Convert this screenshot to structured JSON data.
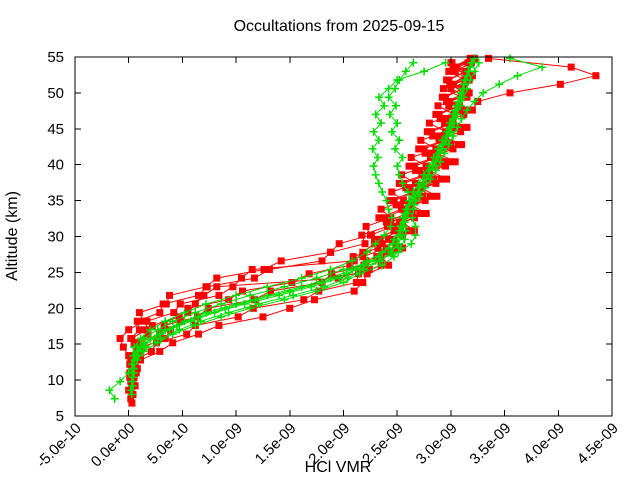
{
  "figure": {
    "title": "Occultations from 2025-09-15"
  },
  "axes": {
    "x": {
      "label": "HCl VMR",
      "tick_labels": [
        "-5.0e-10",
        "0.0e+00",
        "5.0e-10",
        "1.0e-09",
        "1.5e-09",
        "2.0e-09",
        "2.5e-09",
        "3.0e-09",
        "3.5e-09",
        "4.0e-09",
        "4.5e-09"
      ],
      "tick_values_nano": [
        -0.5,
        0,
        0.5,
        1,
        1.5,
        2,
        2.5,
        3,
        3.5,
        4,
        4.5
      ]
    },
    "y": {
      "label": "Altitude (km)",
      "tick_values": [
        5,
        10,
        15,
        20,
        25,
        30,
        35,
        40,
        45,
        50,
        55
      ]
    }
  },
  "colors": {
    "set1": "#ff0000",
    "set2": "#00dc00",
    "frame": "#000000",
    "background": "#ffffff"
  },
  "chart_data": {
    "type": "line",
    "title": "Occultations from 2025-09-15",
    "xlabel": "HCl VMR",
    "ylabel": "Altitude (km)",
    "xlim": [
      -5e-10,
      4.5e-09
    ],
    "ylim": [
      5,
      55
    ],
    "grid": false,
    "legend": "none",
    "marker_sets": {
      "set1": "filled-square",
      "set2": "plus"
    },
    "vmr_unit_multiplier": 1e-09,
    "altitude_step_km": 1.2,
    "series": [
      {
        "name": "red-occultation-1",
        "color_key": "set1",
        "marker": "square",
        "alt_start_km": 6.8,
        "vmr_nano": [
          0.03,
          0.04,
          0.04,
          0.05,
          0.03,
          0.11,
          0.29,
          0.41,
          0.65,
          0.84,
          1.25,
          1.5,
          1.73,
          2.1,
          2.18,
          2.22,
          2.42,
          2.35,
          2.55,
          2.46,
          2.66,
          2.55,
          2.77,
          2.63,
          2.87,
          2.72,
          2.96,
          2.8,
          3.04,
          2.87,
          3.1,
          2.92,
          3.15,
          2.97,
          3.2,
          3.25,
          3.55,
          4.02,
          4.35,
          4.12,
          3.35
        ]
      },
      {
        "name": "red-occultation-2",
        "color_key": "set1",
        "marker": "square",
        "alt_start_km": 8.0,
        "vmr_nano": [
          0.03,
          0.06,
          0.02,
          0.08,
          0.07,
          0.21,
          0.26,
          0.54,
          0.62,
          1.02,
          1.16,
          1.63,
          1.77,
          2.12,
          2.14,
          2.35,
          2.31,
          2.49,
          2.42,
          2.61,
          2.52,
          2.71,
          2.61,
          2.81,
          2.7,
          2.91,
          2.78,
          2.99,
          2.85,
          3.07,
          2.91,
          3.11,
          2.95,
          3.14,
          2.99,
          3.17,
          3.02,
          3.2,
          3.05,
          3.22
        ]
      },
      {
        "name": "red-occultation-3",
        "color_key": "set1",
        "marker": "square",
        "alt_start_km": 7.4,
        "vmr_nano": [
          0.02,
          0.0,
          0.04,
          0.07,
          0.03,
          0.09,
          0.12,
          0.34,
          0.39,
          0.48,
          0.55,
          0.62,
          0.7,
          0.82,
          1.95,
          2.24,
          2.21,
          2.43,
          2.36,
          2.55,
          2.46,
          2.66,
          2.56,
          2.76,
          2.64,
          2.86,
          2.73,
          2.95,
          2.81,
          3.02,
          2.89,
          3.09,
          2.94,
          3.12,
          2.98,
          3.15,
          3.0,
          3.17,
          3.04,
          3.19
        ]
      },
      {
        "name": "red-occultation-4",
        "color_key": "set1",
        "marker": "square",
        "alt_start_km": 9.2,
        "vmr_nano": [
          0.03,
          0.01,
          0.07,
          0.05,
          0.1,
          0.09,
          0.29,
          0.33,
          0.64,
          0.74,
          1.17,
          1.32,
          1.8,
          1.89,
          2.19,
          2.18,
          2.4,
          2.34,
          2.53,
          2.44,
          2.64,
          2.53,
          2.74,
          2.62,
          2.84,
          2.71,
          2.93,
          2.79,
          3.0,
          2.87,
          3.07,
          2.93,
          3.11,
          2.97,
          3.14,
          3.0,
          3.16,
          3.03,
          3.2
        ]
      },
      {
        "name": "red-occultation-5",
        "color_key": "set1",
        "marker": "square",
        "alt_start_km": 10.4,
        "vmr_nano": [
          0.03,
          0.06,
          0.02,
          0.08,
          0.05,
          0.18,
          0.22,
          0.47,
          0.55,
          0.93,
          1.06,
          1.52,
          1.68,
          2.06,
          2.09,
          2.32,
          2.29,
          2.47,
          2.4,
          2.59,
          2.49,
          2.7,
          2.58,
          2.81,
          2.67,
          2.9,
          2.76,
          2.97,
          2.83,
          3.04,
          2.9,
          3.09,
          2.96,
          3.13,
          2.99,
          3.15,
          3.02,
          3.18
        ]
      },
      {
        "name": "red-occultation-6",
        "color_key": "set1",
        "marker": "square",
        "alt_start_km": 11.0,
        "vmr_nano": [
          0.03,
          0.01,
          0.04,
          0.08,
          0.03,
          0.16,
          0.17,
          0.42,
          0.48,
          0.84,
          0.97,
          1.05,
          1.15,
          2.1,
          2.18,
          2.29,
          2.26,
          2.45,
          2.38,
          2.57,
          2.47,
          2.68,
          2.56,
          2.78,
          2.66,
          2.87,
          2.75,
          2.95,
          2.82,
          3.02,
          2.89,
          3.08,
          2.95,
          3.11,
          2.98,
          3.14,
          3.01
        ]
      },
      {
        "name": "red-occultation-7",
        "color_key": "set1",
        "marker": "square",
        "alt_start_km": 12.2,
        "vmr_nano": [
          0.03,
          0.02,
          0.07,
          0.02,
          0.1,
          0.08,
          0.29,
          0.32,
          0.65,
          0.73,
          1.17,
          1.31,
          1.8,
          1.88,
          2.2,
          2.17,
          2.41,
          2.33,
          2.54,
          2.43,
          2.65,
          2.52,
          2.75,
          2.61,
          2.85,
          2.7,
          2.94,
          2.78,
          3.01,
          2.86,
          3.08,
          2.92,
          3.12,
          2.96,
          3.15,
          3.0
        ]
      },
      {
        "name": "red-occultation-8",
        "color_key": "set1",
        "marker": "square",
        "alt_start_km": 9.8,
        "vmr_nano": [
          0.02,
          0.01,
          0.06,
          0.0,
          -0.05,
          -0.08,
          0.0,
          0.14,
          0.1,
          0.35,
          0.38,
          0.72,
          0.82,
          1.26,
          1.42,
          1.88,
          1.96,
          2.25,
          2.21,
          2.44,
          2.35,
          2.56,
          2.45,
          2.67,
          2.54,
          2.77,
          2.63,
          2.86,
          2.72,
          2.95,
          2.8,
          3.03,
          2.88,
          3.1,
          2.93,
          3.13,
          2.98,
          3.16
        ]
      },
      {
        "name": "green-occultation-1",
        "color_key": "set2",
        "marker": "plus",
        "alt_start_km": 8.0,
        "vmr_nano": [
          0.03,
          0.04,
          0.04,
          0.05,
          0.08,
          0.14,
          0.27,
          0.41,
          0.62,
          0.86,
          1.13,
          1.45,
          1.75,
          2.0,
          2.15,
          2.36,
          2.47,
          2.53,
          2.57,
          2.58,
          2.57,
          2.57,
          2.61,
          2.66,
          2.71,
          2.77,
          2.8,
          2.86,
          2.89,
          2.92,
          2.96,
          2.99,
          3.02,
          3.04,
          3.07,
          3.09,
          3.12,
          3.15,
          3.18,
          3.22
        ]
      },
      {
        "name": "green-occultation-2",
        "color_key": "set2",
        "marker": "plus",
        "alt_start_km": 8.6,
        "vmr_nano": [
          0.02,
          0.03,
          0.05,
          0.04,
          0.07,
          0.12,
          0.24,
          0.38,
          0.58,
          0.8,
          1.08,
          1.4,
          1.7,
          1.96,
          2.12,
          2.34,
          2.45,
          2.51,
          2.55,
          2.56,
          2.55,
          2.58,
          2.62,
          2.6,
          2.55,
          2.52,
          2.5,
          2.55,
          2.48,
          2.52,
          2.45,
          2.5,
          2.43,
          2.49,
          2.42,
          2.48,
          2.52,
          2.58,
          2.65
        ]
      },
      {
        "name": "green-occultation-3",
        "color_key": "set2",
        "marker": "plus",
        "alt_start_km": 9.8,
        "vmr_nano": [
          0.03,
          0.04,
          0.04,
          0.05,
          0.11,
          0.2,
          0.34,
          0.52,
          0.72,
          1.0,
          1.29,
          1.61,
          1.88,
          2.08,
          2.22,
          2.36,
          2.46,
          2.52,
          2.55,
          2.58,
          2.58,
          2.61,
          2.65,
          2.7,
          2.75,
          2.8,
          2.84,
          2.88,
          2.92,
          2.96,
          2.99,
          3.02,
          3.05,
          3.08,
          3.11,
          3.13,
          3.16,
          3.19
        ]
      },
      {
        "name": "green-occultation-4",
        "color_key": "set2",
        "marker": "plus",
        "alt_start_km": 11.0,
        "vmr_nano": [
          0.03,
          0.04,
          0.05,
          0.08,
          0.14,
          0.27,
          0.41,
          0.62,
          0.86,
          1.13,
          1.45,
          1.75,
          2.0,
          2.3,
          2.51,
          2.63,
          2.67,
          2.67,
          2.64,
          2.65,
          2.67,
          2.7,
          2.74,
          2.79,
          2.84,
          2.88,
          2.92,
          2.96,
          3.0,
          3.03,
          3.06,
          3.09,
          3.12,
          3.15,
          3.18,
          3.22,
          3.26
        ]
      },
      {
        "name": "green-occultation-5",
        "color_key": "set2",
        "marker": "plus",
        "alt_start_km": 12.2,
        "vmr_nano": [
          0.03,
          0.04,
          0.05,
          0.11,
          0.2,
          0.34,
          0.52,
          0.72,
          1.0,
          1.29,
          1.61,
          1.88,
          2.08,
          2.22,
          2.3,
          2.38,
          2.44,
          2.45,
          2.42,
          2.4,
          2.36,
          2.33,
          2.3,
          2.28,
          2.32,
          2.27,
          2.33,
          2.28,
          2.35,
          2.3,
          2.38,
          2.33,
          2.42,
          2.5,
          2.75,
          2.95
        ]
      },
      {
        "name": "green-occultation-6",
        "color_key": "set2",
        "marker": "plus",
        "alt_start_km": 7.4,
        "vmr_nano": [
          -0.13,
          -0.18,
          -0.08,
          0.0,
          0.04,
          0.09,
          0.16,
          0.3,
          0.47,
          0.67,
          0.93,
          1.21,
          1.53,
          1.82,
          2.04,
          2.19,
          2.34,
          2.44,
          2.5,
          2.53,
          2.53,
          2.55,
          2.59,
          2.64,
          2.69,
          2.74,
          2.79,
          2.83,
          2.87,
          2.91,
          2.95,
          2.98,
          3.01,
          3.04,
          3.07,
          3.1,
          3.12,
          3.14,
          3.17,
          3.2
        ]
      },
      {
        "name": "green-occultation-7",
        "color_key": "set2",
        "marker": "plus",
        "alt_start_km": 9.2,
        "vmr_nano": [
          0.03,
          0.04,
          0.04,
          0.05,
          0.09,
          0.15,
          0.29,
          0.45,
          0.65,
          0.9,
          1.18,
          1.5,
          1.8,
          2.03,
          2.18,
          2.33,
          2.42,
          2.47,
          2.52,
          2.56,
          2.6,
          2.66,
          2.71,
          2.76,
          2.81,
          2.86,
          2.9,
          2.94,
          2.98,
          3.02,
          3.06,
          3.1,
          3.15,
          3.22,
          3.3,
          3.45,
          3.62,
          3.85,
          3.55
        ]
      }
    ]
  }
}
